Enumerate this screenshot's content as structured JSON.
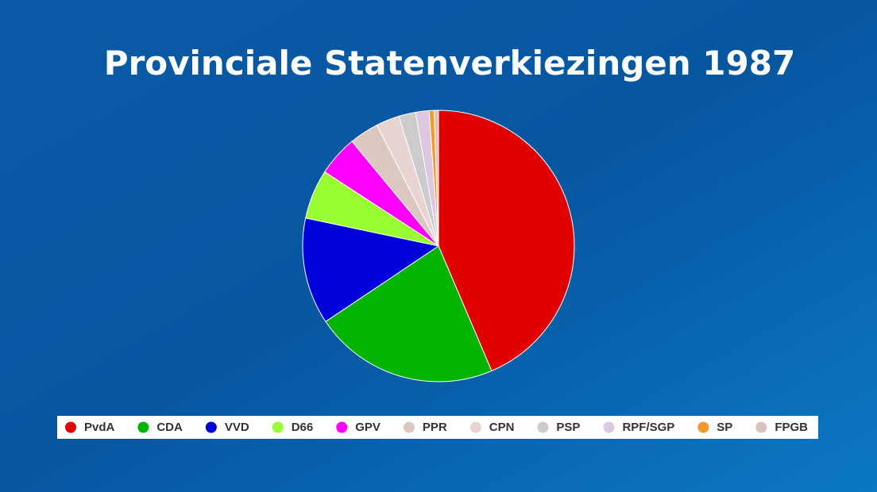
{
  "chart_data": {
    "type": "pie",
    "title": "Provinciale Statenverkiezingen 1987",
    "categories": [
      "PvdA",
      "CDA",
      "VVD",
      "D66",
      "GPV",
      "PPR",
      "CPN",
      "PSP",
      "RPF/SGP",
      "SP",
      "FPGB"
    ],
    "values": [
      43.6,
      22.0,
      12.7,
      5.9,
      4.8,
      3.5,
      2.8,
      2.0,
      1.6,
      0.6,
      0.5
    ],
    "colors": [
      "#e00000",
      "#00b400",
      "#0000d8",
      "#99ff33",
      "#ff00ff",
      "#dcc8c0",
      "#e8d4d0",
      "#cccccc",
      "#dcc8e0",
      "#f39a2e",
      "#d8c4bc"
    ],
    "legend": "bottom"
  }
}
